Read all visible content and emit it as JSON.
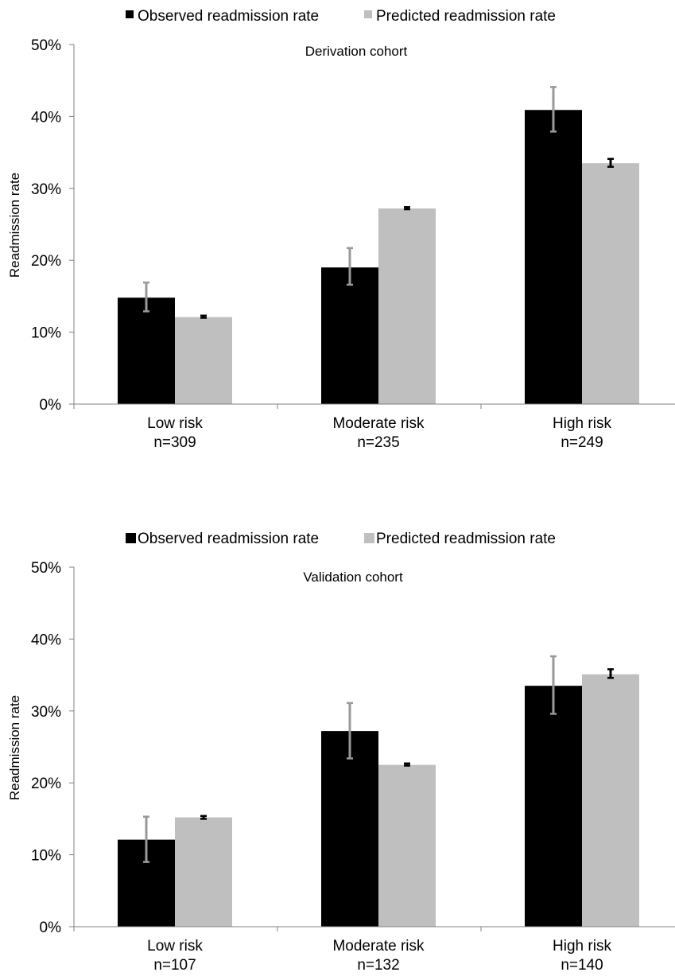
{
  "chart_data": [
    {
      "type": "bar",
      "title": "Derivation cohort",
      "xlabel": "",
      "ylabel": "Readmission rate",
      "ylim": [
        0,
        50
      ],
      "yticks": [
        "0%",
        "10%",
        "20%",
        "30%",
        "40%",
        "50%"
      ],
      "categories": [
        "Low risk",
        "Moderate risk",
        "High risk"
      ],
      "category_n": [
        "n=309",
        "n=235",
        "n=249"
      ],
      "legend_position": "top",
      "grid": false,
      "series": [
        {
          "name": "Observed readmission rate",
          "color": "#000000",
          "error_color": "#999999",
          "values": [
            14.8,
            19.0,
            40.9
          ],
          "err_low": [
            12.9,
            16.6,
            37.9
          ],
          "err_high": [
            16.9,
            21.7,
            44.1
          ]
        },
        {
          "name": "Predicted readmission rate",
          "color": "#bfbfbf",
          "error_color": "#000000",
          "values": [
            12.1,
            27.2,
            33.5
          ],
          "err_low": [
            12.0,
            27.1,
            33.0
          ],
          "err_high": [
            12.3,
            27.4,
            34.1
          ]
        }
      ]
    },
    {
      "type": "bar",
      "title": "Validation cohort",
      "xlabel": "",
      "ylabel": "Readmission rate",
      "ylim": [
        0,
        50
      ],
      "yticks": [
        "0%",
        "10%",
        "20%",
        "30%",
        "40%",
        "50%"
      ],
      "categories": [
        "Low risk",
        "Moderate risk",
        "High risk"
      ],
      "category_n": [
        "n=107",
        "n=132",
        "n=140"
      ],
      "legend_position": "top",
      "grid": false,
      "series": [
        {
          "name": "Observed readmission rate",
          "color": "#000000",
          "error_color": "#999999",
          "values": [
            12.1,
            27.2,
            33.5
          ],
          "err_low": [
            9.0,
            23.4,
            29.6
          ],
          "err_high": [
            15.3,
            31.1,
            37.6
          ]
        },
        {
          "name": "Predicted readmission rate",
          "color": "#bfbfbf",
          "error_color": "#000000",
          "values": [
            15.2,
            22.5,
            35.1
          ],
          "err_low": [
            15.0,
            22.4,
            34.6
          ],
          "err_high": [
            15.4,
            22.7,
            35.8
          ]
        }
      ]
    }
  ]
}
